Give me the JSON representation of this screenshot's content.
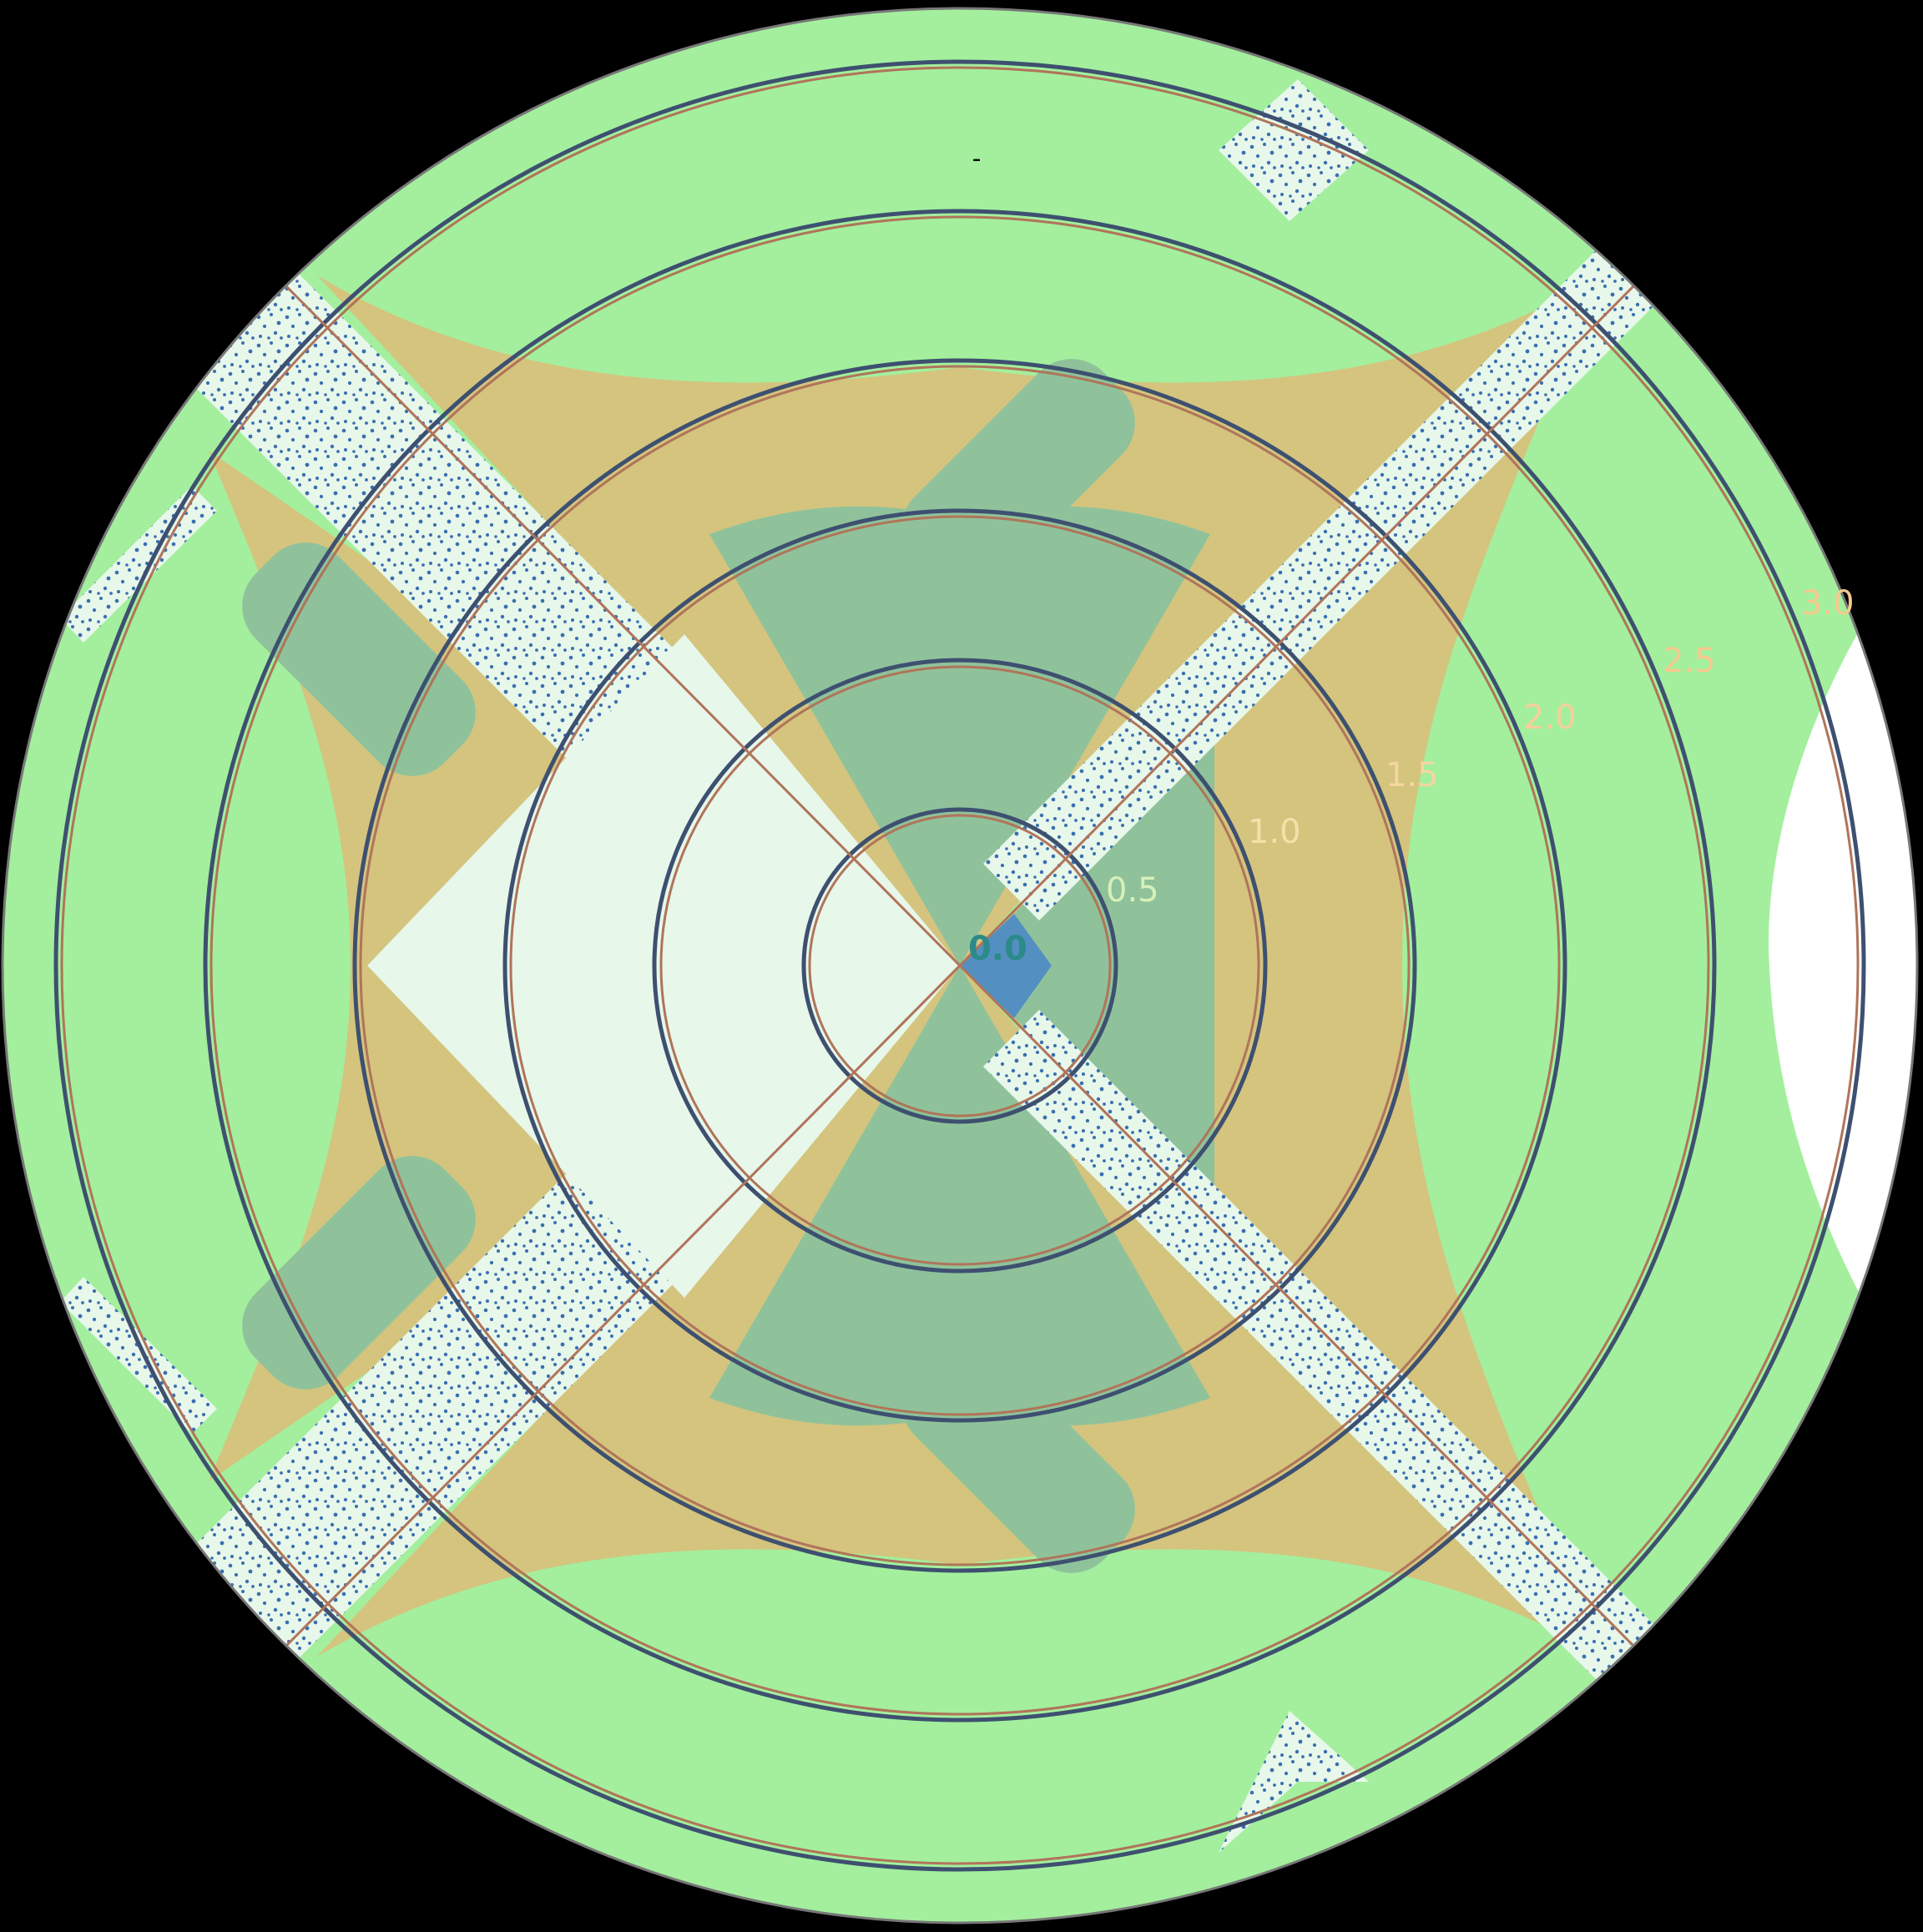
{
  "title": "-",
  "radial_labels": [
    {
      "text": "0.0",
      "color": "#2b8a8a"
    },
    {
      "text": "0.5",
      "color": "#d8f0b8"
    },
    {
      "text": "1.0",
      "color": "#f2e2a8"
    },
    {
      "text": "1.5",
      "color": "#f5d6a0"
    },
    {
      "text": "2.0",
      "color": "#f7cf9a"
    },
    {
      "text": "2.5",
      "color": "#f7c98e"
    },
    {
      "text": "3.0",
      "color": "#f7c98e"
    }
  ],
  "colors": {
    "background": "#000000",
    "outer_field": "#a3ef9d",
    "tan_band": "#d4c47e",
    "sage_region": "#8fc29b",
    "speckle_band": "#e7f7ea",
    "speckle_dot": "#3a6fb0",
    "rings_dark": "#3e5070",
    "rings_brown": "#b0745a",
    "white_gap": "#ffffff"
  }
}
